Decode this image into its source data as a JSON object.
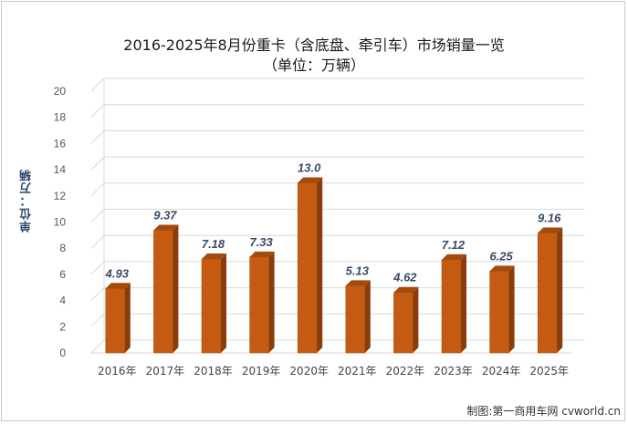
{
  "chart_data": {
    "type": "bar",
    "title": "2016-2025年8月份重卡（含底盘、牵引车）市场销量一览",
    "subtitle": "（单位：万辆）",
    "ylabel": "单位：万辆",
    "xlabel": "",
    "categories": [
      "2016年",
      "2017年",
      "2018年",
      "2019年",
      "2020年",
      "2021年",
      "2022年",
      "2023年",
      "2024年",
      "2025年"
    ],
    "values": [
      4.93,
      9.37,
      7.18,
      7.33,
      13.0,
      5.13,
      4.62,
      7.12,
      6.25,
      9.16
    ],
    "value_labels": [
      "4.93",
      "9.37",
      "7.18",
      "7.33",
      "13.0",
      "5.13",
      "4.62",
      "7.12",
      "6.25",
      "9.16"
    ],
    "ylim": [
      0,
      20
    ],
    "yticks": [
      0,
      2,
      4,
      6,
      8,
      10,
      12,
      14,
      16,
      18,
      20
    ],
    "grid": true,
    "legend": "none",
    "bar_color": "#c55a11"
  },
  "source": "制图:第一商用车网 cvworld.cn"
}
